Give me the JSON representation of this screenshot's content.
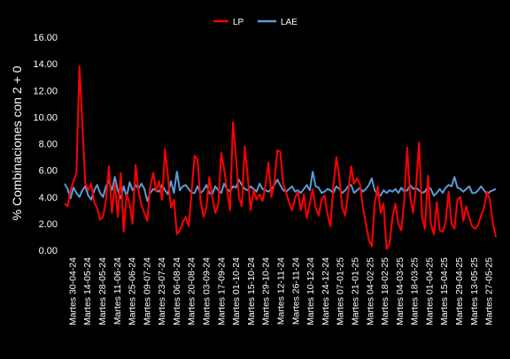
{
  "chart_data": {
    "type": "line",
    "title": "",
    "xlabel": "",
    "ylabel": "% Combinaciones con 2 + 0",
    "ylim": [
      0,
      16
    ],
    "yticks": [
      "0.00",
      "2.00",
      "4.00",
      "6.00",
      "8.00",
      "10.00",
      "12.00",
      "14.00",
      "16.00"
    ],
    "grid": false,
    "legend_position": "top-center",
    "x_tick_labels": [
      "Martes 30-04-24",
      "Martes 14-05-24",
      "Martes 28-05-24",
      "Martes 11-06-24",
      "Martes 25-06-24",
      "Martes 09-07-24",
      "Martes 23-07-24",
      "Martes 06-08-24",
      "Martes 20-08-24",
      "Martes 03-09-24",
      "Martes 17-09-24",
      "Martes 01-10-24",
      "Martes 15-10-24",
      "Martes 29-10-24",
      "Martes 12-11-24",
      "Martes 26-11-24",
      "Martes 10-12-24",
      "Martes 24-12-24",
      "Martes 07-01-25",
      "Martes 21-01-25",
      "Martes 04-02-25",
      "Martes 18-02-25",
      "Martes 04-03-25",
      "Martes 18-03-25",
      "Martes 01-04-25",
      "Martes 15-04-25",
      "Martes 29-04-25",
      "Martes 13-05-25",
      "Martes 27-05-25"
    ],
    "series": [
      {
        "name": "LP",
        "color": "#ff0000",
        "values": [
          3.5,
          3.3,
          4.5,
          5.2,
          5.8,
          13.8,
          9.5,
          5.0,
          4.5,
          5.0,
          3.6,
          3.2,
          2.3,
          2.5,
          3.8,
          6.3,
          2.8,
          5.0,
          2.5,
          5.8,
          1.4,
          4.2,
          3.5,
          2.0,
          6.4,
          4.5,
          3.4,
          2.8,
          2.2,
          4.8,
          5.8,
          4.4,
          5.2,
          3.8,
          7.6,
          5.5,
          3.2,
          3.8,
          1.2,
          1.5,
          2.1,
          2.5,
          1.8,
          4.4,
          7.1,
          6.8,
          3.8,
          2.5,
          3.2,
          5.5,
          4.0,
          2.8,
          3.4,
          7.3,
          6.1,
          4.5,
          3.0,
          9.6,
          7.0,
          4.0,
          3.3,
          7.8,
          5.5,
          3.0,
          4.5,
          3.8,
          4.2,
          3.7,
          4.8,
          6.6,
          4.0,
          5.0,
          7.5,
          7.4,
          5.0,
          4.3,
          3.6,
          3.0,
          3.9,
          4.4,
          3.0,
          4.2,
          2.4,
          3.5,
          4.6,
          3.2,
          2.6,
          3.8,
          4.1,
          2.7,
          1.8,
          4.8,
          7.0,
          5.5,
          3.2,
          2.6,
          4.3,
          6.3,
          5.0,
          5.4,
          5.0,
          3.2,
          2.0,
          0.8,
          0.3,
          3.5,
          4.8,
          2.8,
          3.5,
          0.1,
          0.5,
          2.5,
          3.5,
          2.0,
          1.5,
          3.8,
          7.7,
          4.0,
          2.8,
          4.8,
          8.1,
          2.5,
          1.6,
          5.6,
          2.0,
          1.2,
          3.6,
          1.5,
          1.4,
          2.1,
          4.4,
          2.0,
          1.6,
          3.8,
          4.0,
          2.2,
          3.3,
          2.4,
          1.8,
          1.6,
          1.9,
          2.6,
          3.2,
          4.4,
          3.8,
          2.0,
          1.0
        ]
      },
      {
        "name": "LAE",
        "color": "#5b9bd5",
        "values": [
          5.0,
          4.6,
          3.9,
          4.7,
          4.3,
          4.0,
          4.5,
          4.8,
          4.1,
          3.8,
          4.5,
          4.9,
          4.3,
          4.0,
          4.8,
          5.2,
          4.5,
          5.5,
          4.5,
          3.9,
          4.8,
          4.0,
          5.1,
          4.5,
          4.9,
          4.6,
          5.0,
          4.6,
          3.7,
          4.3,
          4.6,
          4.5,
          4.4,
          4.9,
          4.5,
          4.2,
          5.2,
          4.3,
          5.9,
          4.5,
          4.8,
          4.9,
          4.6,
          4.3,
          4.3,
          4.8,
          4.3,
          4.5,
          4.9,
          4.3,
          4.2,
          4.8,
          4.5,
          4.3,
          5.0,
          4.6,
          4.4,
          4.8,
          4.7,
          5.3,
          4.9,
          4.6,
          4.5,
          4.8,
          4.6,
          4.4,
          5.0,
          4.6,
          4.5,
          4.4,
          4.6,
          4.9,
          5.3,
          4.9,
          4.5,
          4.4,
          4.6,
          4.8,
          4.4,
          4.5,
          4.3,
          4.6,
          4.9,
          4.5,
          5.9,
          4.8,
          4.7,
          4.3,
          4.4,
          4.6,
          4.5,
          4.3,
          4.8,
          4.6,
          4.3,
          4.5,
          4.8,
          4.9,
          4.3,
          4.5,
          4.7,
          4.4,
          4.6,
          4.9,
          5.4,
          4.5,
          4.2,
          4.1,
          4.5,
          4.3,
          4.5,
          4.4,
          4.6,
          4.3,
          4.7,
          4.4,
          4.5,
          4.9,
          4.6,
          4.7,
          4.5,
          4.3,
          4.4,
          4.8,
          4.6,
          4.1,
          4.3,
          4.6,
          4.3,
          4.7,
          4.9,
          4.8,
          5.5,
          4.7,
          4.6,
          4.4,
          4.6,
          4.8,
          4.3,
          4.3,
          4.5,
          4.8,
          4.5,
          4.2,
          4.4,
          4.5,
          4.6
        ]
      }
    ]
  }
}
